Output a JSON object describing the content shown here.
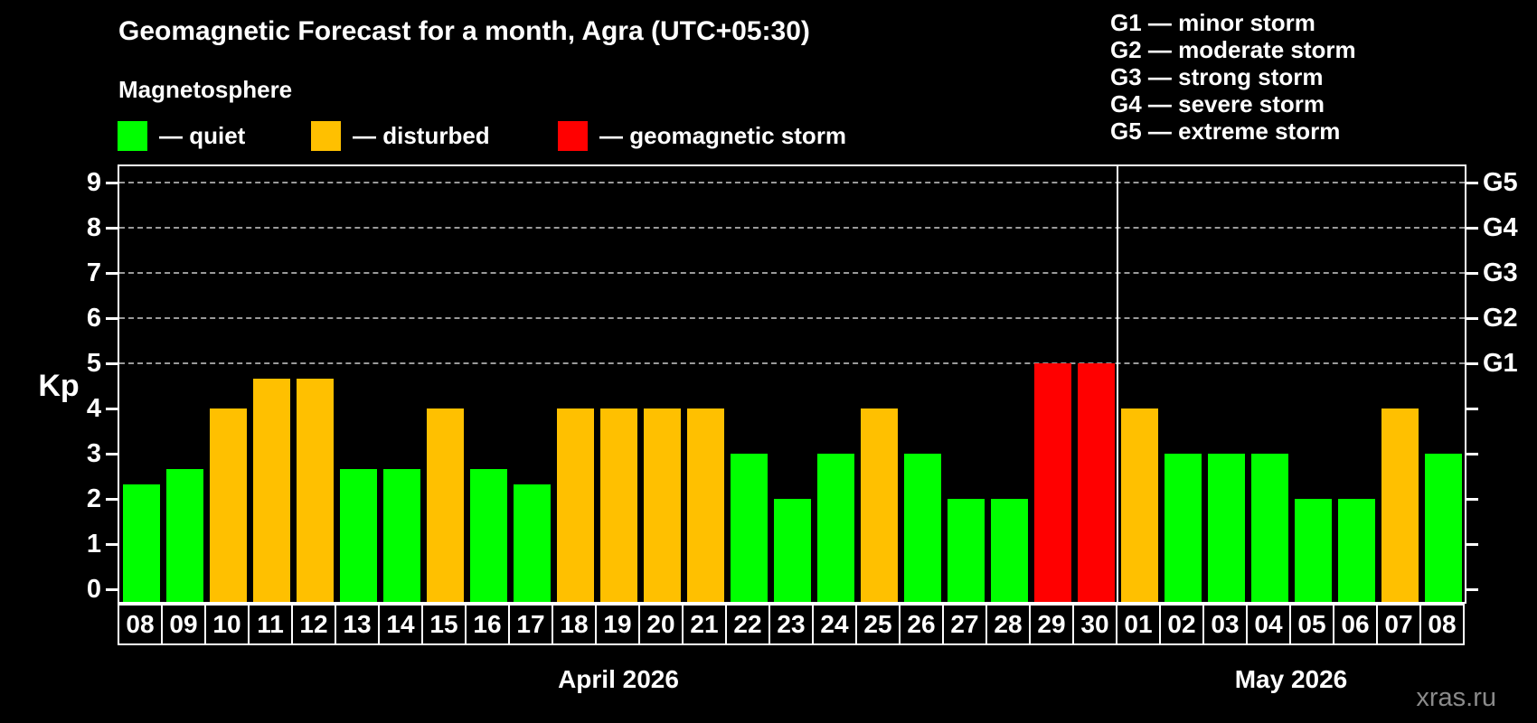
{
  "header": {
    "title": "Geomagnetic Forecast for a month, Agra (UTC+05:30)"
  },
  "magnetosphere_legend": {
    "title": "Magnetosphere",
    "items": [
      {
        "name": "quiet",
        "label": "— quiet",
        "color": "#00ff00"
      },
      {
        "name": "disturbed",
        "label": "— disturbed",
        "color": "#ffc000"
      },
      {
        "name": "storm",
        "label": "— geomagnetic storm",
        "color": "#ff0000"
      }
    ]
  },
  "g_scale_legend": {
    "items": [
      "G1 — minor storm",
      "G2 — moderate storm",
      "G3 — strong storm",
      "G4 — severe storm",
      "G5 — extreme storm"
    ]
  },
  "watermark": "xras.ru",
  "chart_data": {
    "type": "bar",
    "title": "Geomagnetic Forecast for a month, Agra (UTC+05:30)",
    "ylabel": "Kp",
    "ylim": [
      0,
      9
    ],
    "yticks": [
      0,
      1,
      2,
      3,
      4,
      5,
      6,
      7,
      8,
      9
    ],
    "gridlines_kp": [
      5,
      6,
      7,
      8,
      9
    ],
    "grid": "dashed, only at G-storm levels 5-9",
    "legend_position": "top",
    "right_scale": [
      {
        "kp": 5,
        "label": "G1"
      },
      {
        "kp": 6,
        "label": "G2"
      },
      {
        "kp": 7,
        "label": "G3"
      },
      {
        "kp": 8,
        "label": "G4"
      },
      {
        "kp": 9,
        "label": "G5"
      }
    ],
    "status_colors": {
      "quiet": "#00ff00",
      "disturbed": "#ffc000",
      "storm": "#ff0000"
    },
    "months": [
      {
        "label": "April 2026",
        "days": 23
      },
      {
        "label": "May 2026",
        "days": 8
      }
    ],
    "bars": [
      {
        "date": "08",
        "kp": 2.33,
        "status": "quiet"
      },
      {
        "date": "09",
        "kp": 2.67,
        "status": "quiet"
      },
      {
        "date": "10",
        "kp": 4,
        "status": "disturbed"
      },
      {
        "date": "11",
        "kp": 4.67,
        "status": "disturbed"
      },
      {
        "date": "12",
        "kp": 4.67,
        "status": "disturbed"
      },
      {
        "date": "13",
        "kp": 2.67,
        "status": "quiet"
      },
      {
        "date": "14",
        "kp": 2.67,
        "status": "quiet"
      },
      {
        "date": "15",
        "kp": 4,
        "status": "disturbed"
      },
      {
        "date": "16",
        "kp": 2.67,
        "status": "quiet"
      },
      {
        "date": "17",
        "kp": 2.33,
        "status": "quiet"
      },
      {
        "date": "18",
        "kp": 4,
        "status": "disturbed"
      },
      {
        "date": "19",
        "kp": 4,
        "status": "disturbed"
      },
      {
        "date": "20",
        "kp": 4,
        "status": "disturbed"
      },
      {
        "date": "21",
        "kp": 4,
        "status": "disturbed"
      },
      {
        "date": "22",
        "kp": 3,
        "status": "quiet"
      },
      {
        "date": "23",
        "kp": 2,
        "status": "quiet"
      },
      {
        "date": "24",
        "kp": 3,
        "status": "quiet"
      },
      {
        "date": "25",
        "kp": 4,
        "status": "disturbed"
      },
      {
        "date": "26",
        "kp": 3,
        "status": "quiet"
      },
      {
        "date": "27",
        "kp": 2,
        "status": "quiet"
      },
      {
        "date": "28",
        "kp": 2,
        "status": "quiet"
      },
      {
        "date": "29",
        "kp": 5,
        "status": "storm"
      },
      {
        "date": "30",
        "kp": 5,
        "status": "storm"
      },
      {
        "date": "01",
        "kp": 4,
        "status": "disturbed"
      },
      {
        "date": "02",
        "kp": 3,
        "status": "quiet"
      },
      {
        "date": "03",
        "kp": 3,
        "status": "quiet"
      },
      {
        "date": "04",
        "kp": 3,
        "status": "quiet"
      },
      {
        "date": "05",
        "kp": 2,
        "status": "quiet"
      },
      {
        "date": "06",
        "kp": 2,
        "status": "quiet"
      },
      {
        "date": "07",
        "kp": 4,
        "status": "disturbed"
      },
      {
        "date": "08",
        "kp": 3,
        "status": "quiet"
      }
    ]
  }
}
